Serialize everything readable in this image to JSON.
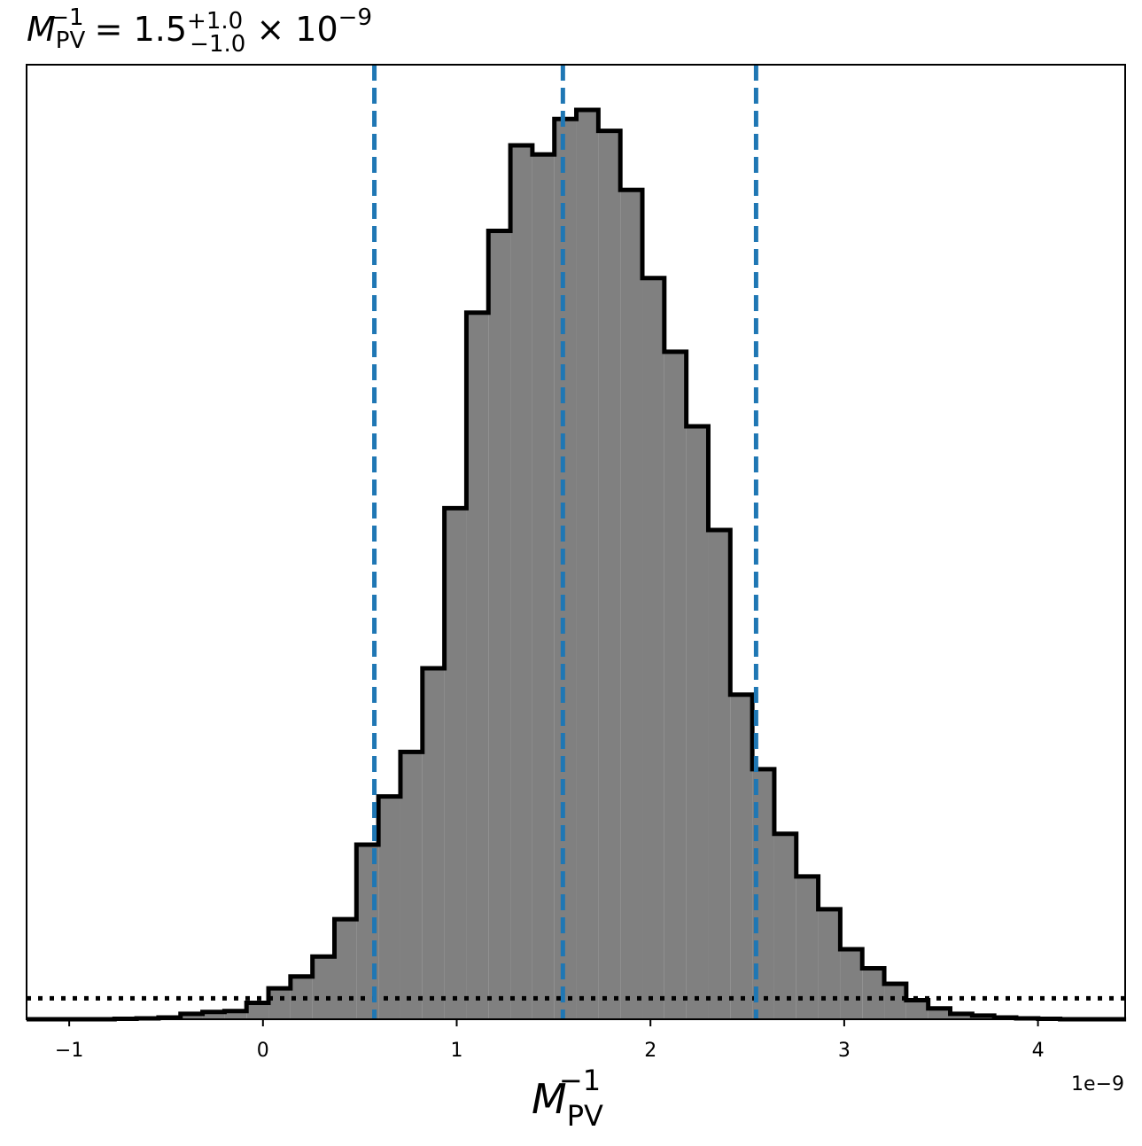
{
  "chart_data": {
    "type": "histogram",
    "title": {
      "main": "M",
      "main_sub": "PV",
      "main_sup": "−1",
      "equals": " = 1.5",
      "plus": "+1.0",
      "minus": "−1.0",
      "times": " × 10",
      "exp": "−9"
    },
    "xlabel": {
      "main": "M",
      "sub": "PV",
      "sup": "−1"
    },
    "offset_text": "1e−9",
    "xlim": [
      -1.22,
      4.45
    ],
    "ylim": [
      0,
      1.0
    ],
    "x_ticks": [
      -1,
      0,
      1,
      2,
      3,
      4
    ],
    "x_tick_labels": [
      "−1",
      "0",
      "1",
      "2",
      "3",
      "4"
    ],
    "y_ticks_shown": false,
    "bin_width": 0.1135,
    "bin_edges_start": -1.22,
    "values": [
      0,
      0,
      0,
      0,
      0.0005,
      0.001,
      0.002,
      0.006,
      0.008,
      0.009,
      0.018,
      0.034,
      0.047,
      0.069,
      0.11,
      0.192,
      0.245,
      0.294,
      0.386,
      0.562,
      0.777,
      0.867,
      0.961,
      0.951,
      0.99,
      1.0,
      0.977,
      0.912,
      0.815,
      0.734,
      0.652,
      0.538,
      0.357,
      0.275,
      0.204,
      0.157,
      0.121,
      0.077,
      0.056,
      0.039,
      0.021,
      0.012,
      0.006,
      0.004,
      0.002,
      0.001,
      0.0005,
      0,
      0,
      0
    ],
    "fill_color": "#808080",
    "edge_color": "#000000",
    "vlines": {
      "values": [
        0.575,
        1.548,
        2.545
      ],
      "color": "#1f77b4",
      "style": "dashed"
    },
    "hline": {
      "value": 0.023,
      "color": "#000000",
      "style": "dotted"
    }
  }
}
